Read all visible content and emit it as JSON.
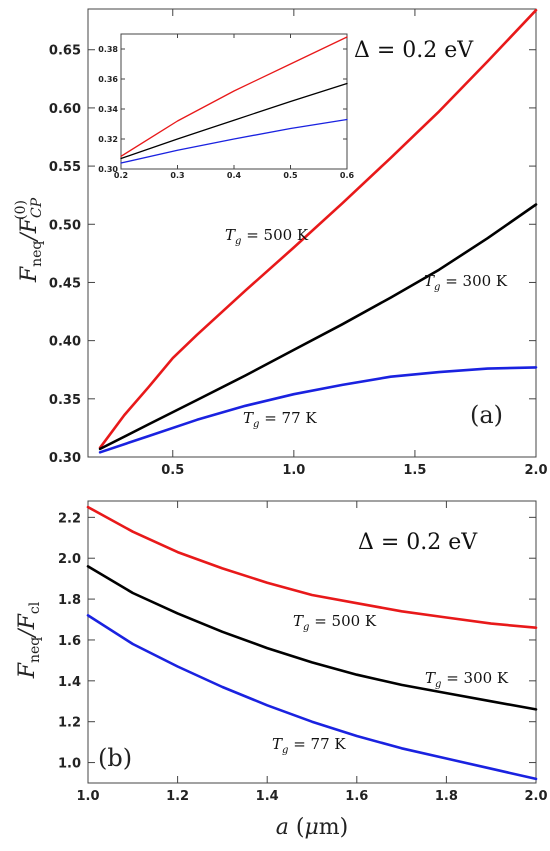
{
  "chart_data": [
    {
      "panel": "a",
      "type": "line",
      "xlim": [
        0.15,
        2.0
      ],
      "ylim": [
        0.3,
        0.685
      ],
      "xticks": [
        0.5,
        1.0,
        1.5,
        2.0
      ],
      "xtick_labels": [
        "0.5",
        "1.0",
        "1.5",
        "2.0"
      ],
      "yticks": [
        0.3,
        0.35,
        0.4,
        0.45,
        0.5,
        0.55,
        0.6,
        0.65
      ],
      "ytick_labels": [
        "0.30",
        "0.35",
        "0.40",
        "0.45",
        "0.50",
        "0.55",
        "0.60",
        "0.65"
      ],
      "ylabel": "F_neq / F_CP^(0)",
      "annotations": {
        "delta": "Δ = 0.2 eV",
        "tag": "(a)"
      },
      "series": [
        {
          "label": "T_g = 500 K",
          "color": "#e8191a",
          "x": [
            0.2,
            0.3,
            0.4,
            0.5,
            0.6,
            0.8,
            1.0,
            1.2,
            1.4,
            1.6,
            1.8,
            2.0
          ],
          "y": [
            0.308,
            0.336,
            0.36,
            0.385,
            0.405,
            0.443,
            0.48,
            0.518,
            0.557,
            0.597,
            0.64,
            0.684
          ]
        },
        {
          "label": "T_g = 300 K",
          "color": "#000000",
          "x": [
            0.2,
            0.4,
            0.6,
            0.8,
            1.0,
            1.2,
            1.4,
            1.6,
            1.8,
            2.0
          ],
          "y": [
            0.307,
            0.328,
            0.349,
            0.37,
            0.392,
            0.414,
            0.437,
            0.461,
            0.488,
            0.517
          ]
        },
        {
          "label": "T_g = 77 K",
          "color": "#1a22e0",
          "x": [
            0.2,
            0.4,
            0.6,
            0.8,
            1.0,
            1.2,
            1.4,
            1.6,
            1.8,
            2.0
          ],
          "y": [
            0.304,
            0.318,
            0.332,
            0.344,
            0.354,
            0.362,
            0.369,
            0.373,
            0.376,
            0.377
          ]
        }
      ],
      "label_text": {
        "s500": "T_g = 500 K",
        "s300": "T_g = 300 K",
        "s77": "T_g = 77 K"
      },
      "inset": {
        "xlim": [
          0.2,
          0.6
        ],
        "ylim": [
          0.3,
          0.39
        ],
        "xticks": [
          0.2,
          0.3,
          0.4,
          0.5,
          0.6
        ],
        "xtick_labels": [
          "0.2",
          "0.3",
          "0.4",
          "0.5",
          "0.6"
        ],
        "yticks": [
          0.3,
          0.32,
          0.34,
          0.36,
          0.38
        ],
        "ytick_labels": [
          "0.30",
          "0.32",
          "0.34",
          "0.36",
          "0.38"
        ],
        "series": [
          {
            "color": "#e8191a",
            "x": [
              0.2,
              0.3,
              0.4,
              0.5,
              0.6
            ],
            "y": [
              0.3085,
              0.332,
              0.352,
              0.37,
              0.388
            ]
          },
          {
            "color": "#000000",
            "x": [
              0.2,
              0.3,
              0.4,
              0.5,
              0.6
            ],
            "y": [
              0.307,
              0.32,
              0.3325,
              0.345,
              0.357
            ]
          },
          {
            "color": "#1a22e0",
            "x": [
              0.2,
              0.3,
              0.4,
              0.5,
              0.6
            ],
            "y": [
              0.304,
              0.3125,
              0.32,
              0.327,
              0.333
            ]
          }
        ]
      }
    },
    {
      "panel": "b",
      "type": "line",
      "xlim": [
        1.0,
        2.0
      ],
      "ylim": [
        0.9,
        2.28
      ],
      "xticks": [
        1.0,
        1.2,
        1.4,
        1.6,
        1.8,
        2.0
      ],
      "xtick_labels": [
        "1.0",
        "1.2",
        "1.4",
        "1.6",
        "1.8",
        "2.0"
      ],
      "yticks": [
        1.0,
        1.2,
        1.4,
        1.6,
        1.8,
        2.0,
        2.2
      ],
      "ytick_labels": [
        "1.0",
        "1.2",
        "1.4",
        "1.6",
        "1.8",
        "2.0",
        "2.2"
      ],
      "xlabel": "a (μm)",
      "ylabel": "F_neq / F_cl",
      "annotations": {
        "delta": "Δ = 0.2 eV",
        "tag": "(b)"
      },
      "series": [
        {
          "label": "T_g = 500 K",
          "color": "#e8191a",
          "x": [
            1.0,
            1.1,
            1.2,
            1.3,
            1.4,
            1.5,
            1.6,
            1.7,
            1.8,
            1.9,
            2.0
          ],
          "y": [
            2.25,
            2.13,
            2.03,
            1.95,
            1.88,
            1.82,
            1.78,
            1.74,
            1.71,
            1.68,
            1.66
          ]
        },
        {
          "label": "T_g = 300 K",
          "color": "#000000",
          "x": [
            1.0,
            1.1,
            1.2,
            1.3,
            1.4,
            1.5,
            1.6,
            1.7,
            1.8,
            1.9,
            2.0
          ],
          "y": [
            1.96,
            1.83,
            1.73,
            1.64,
            1.56,
            1.49,
            1.43,
            1.38,
            1.34,
            1.3,
            1.26
          ]
        },
        {
          "label": "T_g = 77 K",
          "color": "#1a22e0",
          "x": [
            1.0,
            1.1,
            1.2,
            1.3,
            1.4,
            1.5,
            1.6,
            1.7,
            1.8,
            1.9,
            2.0
          ],
          "y": [
            1.72,
            1.58,
            1.47,
            1.37,
            1.28,
            1.2,
            1.13,
            1.07,
            1.02,
            0.97,
            0.92
          ]
        }
      ],
      "label_text": {
        "s500": "T_g = 500 K",
        "s300": "T_g = 300 K",
        "s77": "T_g = 77 K"
      }
    }
  ]
}
